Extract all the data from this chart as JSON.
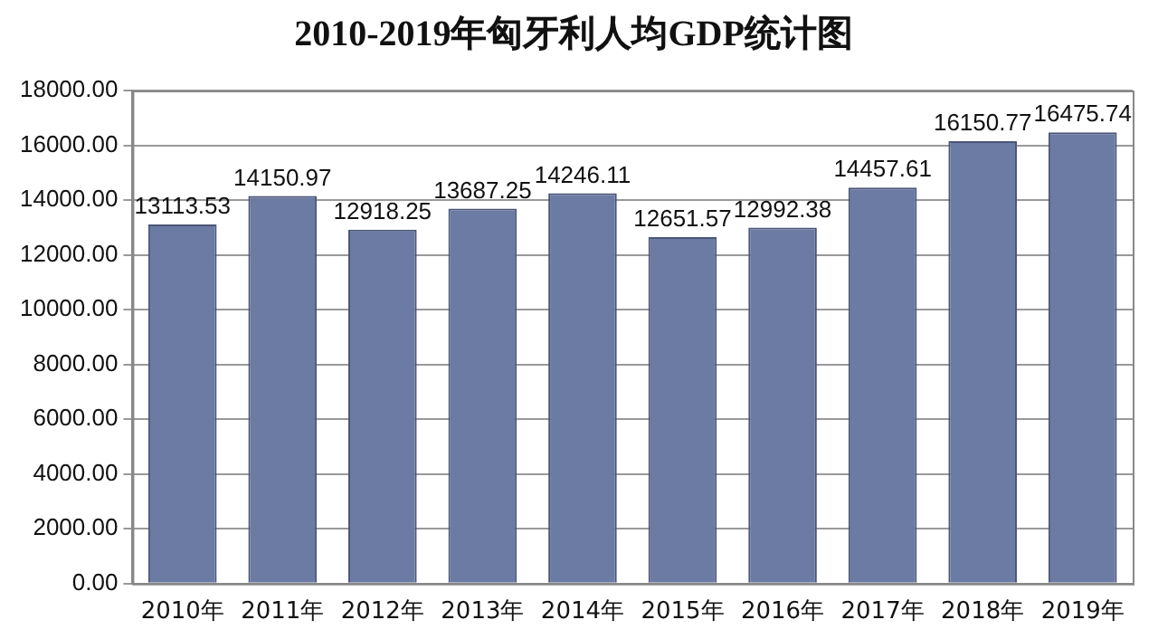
{
  "chart_data": {
    "type": "bar",
    "title": "2010-2019年匈牙利人均GDP统计图",
    "categories": [
      "2010年",
      "2011年",
      "2012年",
      "2013年",
      "2014年",
      "2015年",
      "2016年",
      "2017年",
      "2018年",
      "2019年"
    ],
    "values": [
      13113.53,
      14150.97,
      12918.25,
      13687.25,
      14246.11,
      12651.57,
      12992.38,
      14457.61,
      16150.77,
      16475.74
    ],
    "color": "#6c7ba3",
    "ylim": [
      0,
      18000
    ],
    "yticks": [
      {
        "value": 0,
        "label": "0.00"
      },
      {
        "value": 2000,
        "label": "2000.00"
      },
      {
        "value": 4000,
        "label": "4000.00"
      },
      {
        "value": 6000,
        "label": "6000.00"
      },
      {
        "value": 8000,
        "label": "8000.00"
      },
      {
        "value": 10000,
        "label": "10000.00"
      },
      {
        "value": 12000,
        "label": "12000.00"
      },
      {
        "value": 14000,
        "label": "14000.00"
      },
      {
        "value": 16000,
        "label": "16000.00"
      },
      {
        "value": 18000,
        "label": "18000.00"
      }
    ],
    "grid": "y",
    "data_labels": true
  }
}
